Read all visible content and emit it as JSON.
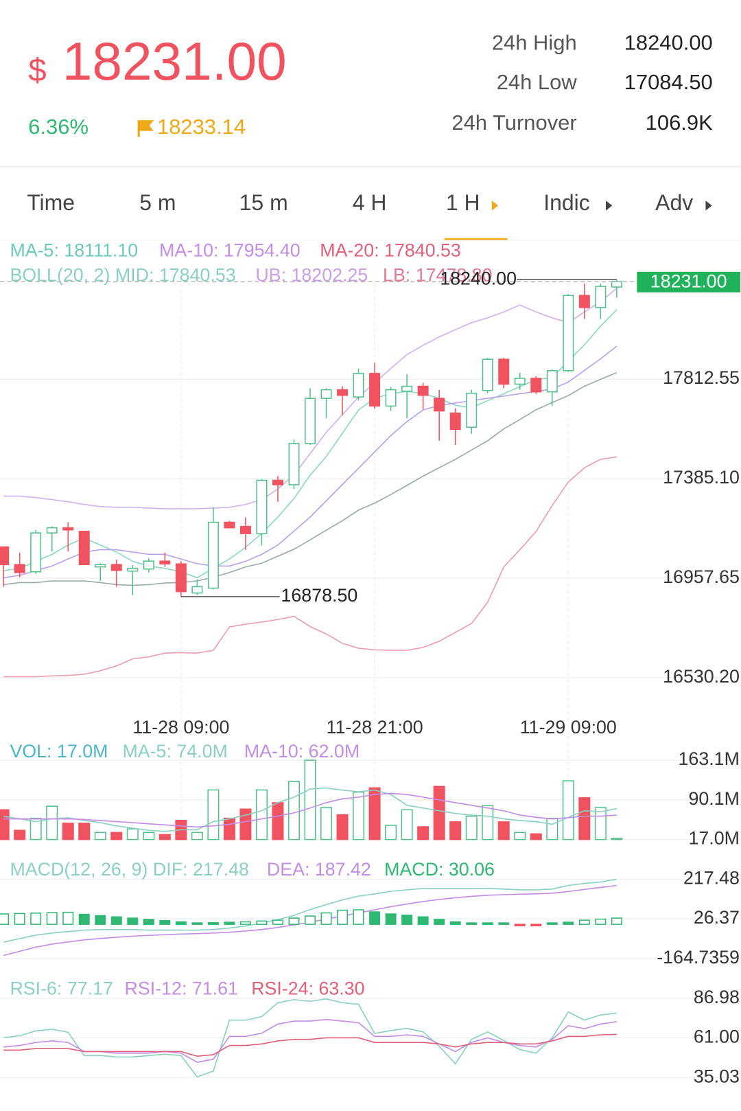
{
  "header": {
    "currency": "$",
    "price": "18231.00",
    "change": "6.36%",
    "mark_price": "18233.14",
    "stats": [
      {
        "label": "24h High",
        "value": "18240.00"
      },
      {
        "label": "24h Low",
        "value": "17084.50"
      },
      {
        "label": "24h Turnover",
        "value": "106.9K"
      }
    ]
  },
  "tabs": [
    "Time",
    "5 m",
    "15 m",
    "4 H",
    "1 H",
    "Indic",
    "Adv"
  ],
  "active_tab": 4,
  "chart_data": [
    {
      "type": "candlestick",
      "categories": [
        null,
        null,
        null,
        null,
        null,
        null,
        null,
        null,
        null,
        null,
        null,
        "11-28 09:00",
        null,
        null,
        null,
        null,
        null,
        null,
        null,
        null,
        null,
        null,
        null,
        "11-28 21:00",
        null,
        null,
        null,
        null,
        null,
        null,
        null,
        null,
        null,
        null,
        null,
        "11-29 09:00",
        null,
        null,
        null
      ],
      "open": [
        17092,
        17016,
        16985,
        17152,
        17174,
        17159,
        17006,
        17016,
        16988,
        16997,
        17031,
        17019,
        16894,
        16915,
        17198,
        17180,
        17149,
        17378,
        17359,
        17536,
        17730,
        17767,
        17736,
        17837,
        17697,
        17761,
        17782,
        17730,
        17667,
        17606,
        17764,
        17898,
        17791,
        17816,
        17758,
        17849,
        18172,
        18120,
        18208
      ],
      "high": [
        17092,
        17067,
        17165,
        17180,
        17198,
        17159,
        17022,
        17037,
        17013,
        17043,
        17067,
        17031,
        16952,
        17262,
        17204,
        17219,
        17384,
        17396,
        17554,
        17773,
        17773,
        17782,
        17858,
        17883,
        17779,
        17834,
        17797,
        17767,
        17688,
        17767,
        17904,
        17904,
        17840,
        17825,
        17855,
        18178,
        18223,
        18223,
        18240
      ],
      "low": [
        16921,
        16961,
        16976,
        17073,
        17073,
        17016,
        16946,
        16921,
        16885,
        16982,
        17006,
        16878.5,
        16885,
        16909,
        17174,
        17079,
        17098,
        17286,
        17341,
        17530,
        17645,
        17657,
        17721,
        17685,
        17676,
        17645,
        17682,
        17548,
        17530,
        17578,
        17752,
        17773,
        17767,
        17749,
        17697,
        17843,
        18071,
        18071,
        18162
      ],
      "close": [
        17016,
        16982,
        17152,
        17174,
        17165,
        17016,
        17016,
        16991,
        17000,
        17031,
        17019,
        16900,
        16921,
        17198,
        17174,
        17149,
        17378,
        17359,
        17536,
        17730,
        17767,
        17743,
        17837,
        17697,
        17767,
        17782,
        17743,
        17676,
        17597,
        17752,
        17898,
        17791,
        17816,
        17758,
        17849,
        18172,
        18120,
        18211,
        18231
      ],
      "up_color": "#52c08a",
      "down_color": "#f0525f",
      "series": [
        {
          "name": "MA-5: 18111.10",
          "color": "#8fd6c8",
          "text_color": "#6cc9bb",
          "values": [
            16990,
            17000,
            17030,
            17060,
            17100,
            17130,
            17100,
            17070,
            17030,
            17010,
            17000,
            16985,
            16960,
            17000,
            17040,
            17090,
            17150,
            17220,
            17300,
            17400,
            17480,
            17580,
            17680,
            17730,
            17750,
            17760,
            17750,
            17730,
            17700,
            17690,
            17720,
            17750,
            17780,
            17810,
            17820,
            17890,
            17960,
            18040,
            18111.1
          ]
        },
        {
          "name": "MA-10: 17954.40",
          "color": "#b9a2ea",
          "text_color": "#c38de6",
          "values": [
            16960,
            16970,
            16990,
            17010,
            17040,
            17070,
            17080,
            17080,
            17070,
            17060,
            17060,
            17040,
            17020,
            17010,
            17010,
            17030,
            17060,
            17100,
            17160,
            17220,
            17290,
            17360,
            17430,
            17500,
            17570,
            17630,
            17680,
            17700,
            17710,
            17720,
            17730,
            17740,
            17750,
            17760,
            17770,
            17800,
            17850,
            17900,
            17954.4
          ]
        },
        {
          "name": "MA-20: 17840.53",
          "color": "#9aaba8",
          "text_color": "#e0607a",
          "values": [
            16930,
            16939,
            16939,
            16946,
            16946,
            16946,
            16939,
            16930,
            16927,
            16930,
            16937,
            16939,
            16946,
            16961,
            16982,
            17006,
            17022,
            17052,
            17082,
            17122,
            17164,
            17204,
            17250,
            17280,
            17317,
            17356,
            17396,
            17432,
            17468,
            17508,
            17548,
            17599,
            17639,
            17681,
            17712,
            17742,
            17782,
            17812,
            17840.53
          ]
        },
        {
          "name": "UB: 18202.25",
          "color": "#d2b2ee",
          "text_color": "#c9a0e6",
          "values": [
            17310,
            17310,
            17304,
            17295,
            17286,
            17274,
            17265,
            17262,
            17262,
            17259,
            17256,
            17256,
            17256,
            17259,
            17262,
            17274,
            17295,
            17341,
            17402,
            17493,
            17584,
            17660,
            17736,
            17797,
            17858,
            17918,
            17958,
            17994,
            18025,
            18055,
            18076,
            18101,
            18131,
            18101,
            18076,
            18055,
            18101,
            18146,
            18202.25
          ]
        },
        {
          "name": "LB: 17478.80",
          "color": "#e8a0b0",
          "text_color": "#e07a92",
          "values": [
            16535,
            16535,
            16535,
            16538,
            16540,
            16545,
            16560,
            16581,
            16611,
            16620,
            16636,
            16638,
            16636,
            16648,
            16748,
            16760,
            16769,
            16780,
            16794,
            16750,
            16718,
            16678,
            16657,
            16650,
            16648,
            16648,
            16660,
            16687,
            16725,
            16763,
            16854,
            17006,
            17080,
            17158,
            17270,
            17371,
            17432,
            17468,
            17478.8
          ]
        }
      ],
      "boll_mid": {
        "label": "BOLL(20, 2) MID: 17840.53",
        "color": "#8ccfc4"
      },
      "last_price": {
        "value": 18231,
        "label": "18231.00",
        "color": "#1fb25a"
      },
      "high_label": {
        "value": 18240,
        "label": "18240.00"
      },
      "low_label": {
        "value": 16878.5,
        "label": "16878.50"
      },
      "ylim": [
        16428.4,
        18284.1
      ],
      "yticks": [
        17812.55,
        {
          "value": 17385.1,
          "label": "17385.10"
        },
        16957.65,
        {
          "value": 16530.2,
          "label": "16530.20"
        }
      ],
      "grid": true
    },
    {
      "type": "bar",
      "series": [
        {
          "name": "VOL: 17.0M",
          "color": "#4db6c6",
          "style": "bar",
          "values": [
            71.8,
            34.0,
            56.1,
            78.3,
            47.0,
            47.0,
            30.0,
            30.0,
            36.6,
            30.0,
            26.1,
            52.2,
            30.0,
            108.3,
            56.1,
            73.1,
            108.3,
            84.8,
            123.9,
            163.1,
            75.7,
            62.6,
            104.4,
            112.2,
            43.1,
            71.8,
            40.5,
            114.8,
            49.6,
            60.0,
            79.6,
            49.6,
            30.0,
            27.4,
            56.1,
            125.2,
            93.9,
            75.7,
            17.0
          ]
        },
        {
          "name": "MA-5: 74.0M",
          "color": "#8ccfc4",
          "style": "line",
          "values": [
            60,
            55,
            50,
            55,
            57,
            52,
            48,
            42,
            38,
            34,
            32,
            35,
            35,
            50,
            55,
            62,
            70,
            85,
            95,
            110,
            112,
            108,
            105,
            108,
            100,
            80,
            75,
            70,
            65,
            62,
            60,
            55,
            52,
            50,
            45,
            58,
            70,
            68,
            74.0
          ]
        },
        {
          "name": "MA-10: 62.0M",
          "color": "#c38de6",
          "style": "line",
          "values": [
            55,
            55,
            55,
            55,
            55,
            54,
            52,
            50,
            48,
            46,
            44,
            42,
            40,
            42,
            45,
            50,
            55,
            60,
            66,
            75,
            85,
            92,
            95,
            100,
            102,
            100,
            95,
            90,
            85,
            80,
            75,
            70,
            62,
            58,
            55,
            57,
            60,
            60,
            62
          ]
        }
      ],
      "ylim": [
        17.0,
        163.1
      ],
      "yticks": [
        {
          "value": 163.1,
          "label": "163.1M"
        },
        {
          "value": 90.1,
          "label": "90.1M"
        },
        {
          "value": 17.0,
          "label": "17.0M"
        }
      ],
      "grid": true
    },
    {
      "type": "macd",
      "series": [
        {
          "name": "MACD(12, 26, 9) DIF: 217.48",
          "color": "#8ccfc4",
          "style": "line",
          "values": [
            -86,
            -69,
            -52,
            -42,
            -35,
            -28,
            -25,
            -25,
            -25,
            -28,
            -28,
            -28,
            -28,
            -25,
            -18,
            -8,
            6,
            23,
            43,
            71,
            95,
            118,
            136,
            146,
            159,
            166,
            173,
            173,
            173,
            173,
            173,
            170,
            166,
            166,
            170,
            187,
            197,
            204,
            217.48
          ]
        },
        {
          "name": "DEA: 187.42",
          "color": "#c38de6",
          "style": "line",
          "values": [
            -150,
            -130,
            -110,
            -95,
            -85,
            -75,
            -68,
            -62,
            -57,
            -53,
            -50,
            -47,
            -45,
            -42,
            -38,
            -32,
            -25,
            -15,
            -3,
            10,
            25,
            40,
            55,
            70,
            85,
            98,
            110,
            120,
            128,
            135,
            140,
            143,
            145,
            147,
            150,
            158,
            168,
            178,
            187.42
          ]
        },
        {
          "name": "MACD: 30.06",
          "color": "#2eb872",
          "down_color": "#f0525f",
          "style": "bar",
          "values": [
            50,
            52,
            54,
            56,
            58,
            48,
            42,
            36,
            30,
            24,
            18,
            12,
            6,
            8,
            10,
            12,
            16,
            20,
            30,
            40,
            55,
            68,
            70,
            60,
            50,
            44,
            36,
            24,
            12,
            6,
            4,
            2,
            -4,
            -3,
            6,
            10,
            20,
            25,
            30.06
          ]
        }
      ],
      "ylim": [
        -164.7359,
        217.48
      ],
      "yticks": [
        217.48,
        26.37,
        -164.7359
      ],
      "grid": true
    },
    {
      "type": "line",
      "series": [
        {
          "name": "RSI-6: 77.17",
          "color": "#8ccfc4",
          "style": "line",
          "values": [
            61.0,
            62.4,
            65.6,
            66.6,
            64.7,
            49.4,
            49.4,
            48.5,
            48.5,
            49.4,
            50.3,
            49.4,
            35.5,
            39.2,
            72.6,
            72.6,
            74.9,
            84.0,
            86.0,
            85.0,
            86.5,
            84.0,
            83.0,
            63.9,
            65.8,
            67.2,
            64.9,
            55.6,
            44.0,
            60.0,
            64.9,
            59.3,
            53.3,
            51.0,
            61.0,
            78.0,
            72.6,
            76.0,
            77.17
          ]
        },
        {
          "name": "RSI-12: 71.61",
          "color": "#c38de6",
          "style": "line",
          "values": [
            55,
            56,
            58,
            59,
            58,
            52,
            52,
            51,
            51,
            51,
            52,
            51,
            45,
            47,
            62,
            62,
            64,
            70,
            72,
            72,
            73,
            72,
            71,
            62,
            62,
            63,
            62,
            57,
            52,
            58,
            61,
            58,
            56,
            55,
            60,
            69,
            67,
            70,
            71.61
          ]
        },
        {
          "name": "RSI-24: 63.30",
          "color": "#e0607a",
          "style": "line",
          "values": [
            53,
            53,
            54,
            54,
            54,
            52,
            52,
            52,
            52,
            52,
            52,
            52,
            49,
            50,
            56,
            56,
            57,
            59,
            60,
            60,
            61,
            61,
            61,
            58,
            58,
            58,
            58,
            57,
            55,
            57,
            58,
            58,
            57,
            57,
            59,
            62,
            62,
            63,
            63.3
          ]
        }
      ],
      "ylim": [
        35.03,
        86.98
      ],
      "yticks": [
        86.98,
        {
          "value": 61,
          "label": "61.00"
        },
        35.03
      ],
      "grid": true
    }
  ]
}
